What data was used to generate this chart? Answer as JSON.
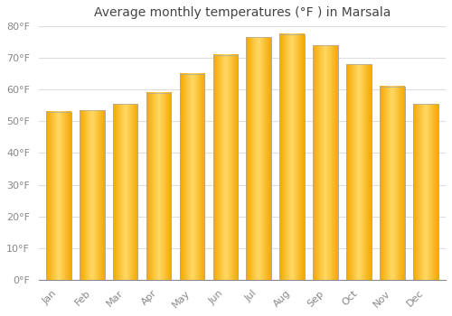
{
  "title": "Average monthly temperatures (°F ) in Marsala",
  "months": [
    "Jan",
    "Feb",
    "Mar",
    "Apr",
    "May",
    "Jun",
    "Jul",
    "Aug",
    "Sep",
    "Oct",
    "Nov",
    "Dec"
  ],
  "values": [
    53,
    53.5,
    55.5,
    59,
    65,
    71,
    76.5,
    77.5,
    74,
    68,
    61,
    55.5
  ],
  "bar_color_center": "#FFD966",
  "bar_color_edge": "#F5A800",
  "background_color": "#FFFFFF",
  "grid_color": "#DDDDDD",
  "ylim": [
    0,
    80
  ],
  "yticks": [
    0,
    10,
    20,
    30,
    40,
    50,
    60,
    70,
    80
  ],
  "title_fontsize": 10,
  "tick_fontsize": 8,
  "bar_width": 0.75
}
